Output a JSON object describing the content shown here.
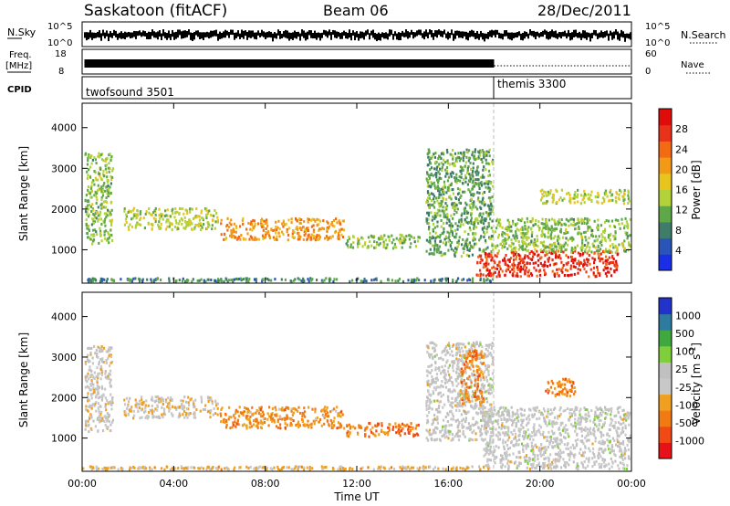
{
  "header": {
    "radar": "Saskatoon (fitACF)",
    "beam": "Beam 06",
    "date": "28/Dec/2011"
  },
  "strip_labels": {
    "nsky": "N.Sky",
    "nsky_ticks": [
      "10^5",
      "10^0"
    ],
    "nsearch": "N.Search",
    "nsearch_ticks": [
      "10^5",
      "10^0"
    ],
    "freq_line1": "Freq.",
    "freq_line2": "[MHz]",
    "freq_ticks": [
      "18",
      "8"
    ],
    "nave": "Nave",
    "nave_ticks": [
      "60",
      "0"
    ],
    "cpid": "CPID"
  },
  "cpid_segments": [
    {
      "label": "twofsound 3501",
      "start_hour": 0
    },
    {
      "label": "themis 3300",
      "start_hour": 18
    }
  ],
  "power_panel": {
    "ylabel": "Slant Range [km]",
    "yticks": [
      "1000",
      "2000",
      "3000",
      "4000"
    ],
    "colorbar_label": "Power [dB]",
    "colorbar_ticks": [
      "4",
      "8",
      "12",
      "16",
      "20",
      "24",
      "28"
    ]
  },
  "velocity_panel": {
    "ylabel": "Slant Range [km]",
    "yticks": [
      "1000",
      "2000",
      "3000",
      "4000"
    ],
    "colorbar_label": "Velocity [m s",
    "colorbar_label_sup": "-1",
    "colorbar_ticks": [
      "-1000",
      "-500",
      "-100",
      "-25",
      "25",
      "100",
      "500",
      "1000"
    ]
  },
  "x_axis": {
    "label": "Time UT",
    "ticks": [
      "00:00",
      "04:00",
      "08:00",
      "12:00",
      "16:00",
      "20:00",
      "00:00"
    ]
  },
  "chart_data": [
    {
      "type": "heatmap",
      "title": "Power",
      "x_range_hours": [
        0,
        24
      ],
      "y_range_km": [
        180,
        4600
      ],
      "color_scale": {
        "min": 0,
        "max": 30,
        "unit": "dB",
        "colors": [
          "#1a2ee6",
          "#2a55b8",
          "#3f7d6a",
          "#5fa84a",
          "#b3d23a",
          "#e8c51e",
          "#f29a18",
          "#f26a12",
          "#e8321a",
          "#e00c0c"
        ]
      },
      "echo_regions": [
        {
          "t0": 0.1,
          "t1": 1.4,
          "r0": 1100,
          "r1": 3400,
          "level": 12
        },
        {
          "t0": 1.8,
          "t1": 6.0,
          "r0": 1450,
          "r1": 2050,
          "level": 14
        },
        {
          "t0": 6.0,
          "t1": 11.5,
          "r0": 1200,
          "r1": 1800,
          "level": 20
        },
        {
          "t0": 11.5,
          "t1": 14.8,
          "r0": 1000,
          "r1": 1400,
          "level": 12
        },
        {
          "t0": 15.0,
          "t1": 18.0,
          "r0": 800,
          "r1": 3500,
          "level": 10
        },
        {
          "t0": 17.2,
          "t1": 23.5,
          "r0": 300,
          "r1": 1000,
          "level": 26
        },
        {
          "t0": 18.0,
          "t1": 24.0,
          "r0": 900,
          "r1": 1800,
          "level": 12
        },
        {
          "t0": 20.0,
          "t1": 24.0,
          "r0": 2100,
          "r1": 2500,
          "level": 14
        },
        {
          "t0": 0.0,
          "t1": 18.0,
          "r0": 180,
          "r1": 330,
          "level": 8
        }
      ]
    },
    {
      "type": "heatmap",
      "title": "Velocity",
      "x_range_hours": [
        0,
        24
      ],
      "y_range_km": [
        180,
        4600
      ],
      "color_scale": {
        "min": -1000,
        "max": 1000,
        "unit": "m s-1",
        "colors": [
          "#e8111a",
          "#f24a14",
          "#f27a12",
          "#f0a020",
          "#c8c8c8",
          "#c0c0c0",
          "#7fcf3a",
          "#3fa83f",
          "#2f7aa0",
          "#2233cc"
        ]
      },
      "echo_regions": [
        {
          "t0": 0.1,
          "t1": 1.4,
          "r0": 1100,
          "r1": 3300,
          "level": -60
        },
        {
          "t0": 1.8,
          "t1": 6.0,
          "r0": 1450,
          "r1": 2050,
          "level": -150
        },
        {
          "t0": 6.0,
          "t1": 11.5,
          "r0": 1200,
          "r1": 1800,
          "level": -400
        },
        {
          "t0": 11.5,
          "t1": 14.8,
          "r0": 1000,
          "r1": 1400,
          "level": -500
        },
        {
          "t0": 15.0,
          "t1": 18.0,
          "r0": 900,
          "r1": 3400,
          "level": 0
        },
        {
          "t0": 16.5,
          "t1": 17.6,
          "r0": 1800,
          "r1": 3200,
          "level": -450
        },
        {
          "t0": 17.5,
          "t1": 24.0,
          "r0": 200,
          "r1": 1800,
          "level": 0
        },
        {
          "t0": 20.2,
          "t1": 21.6,
          "r0": 2000,
          "r1": 2500,
          "level": -450
        },
        {
          "t0": 0.0,
          "t1": 18.0,
          "r0": 180,
          "r1": 330,
          "level": -200
        }
      ]
    }
  ]
}
